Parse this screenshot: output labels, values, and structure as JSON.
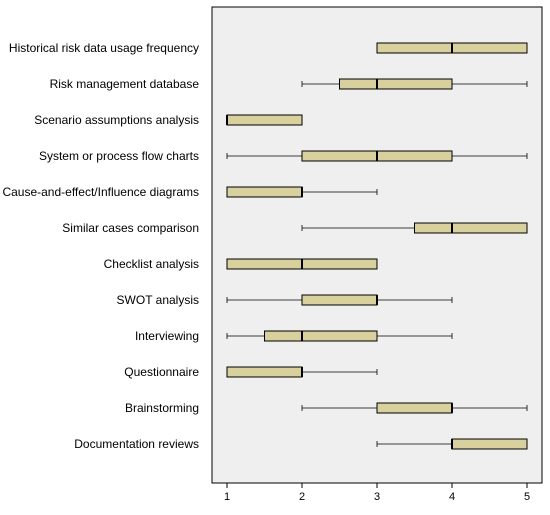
{
  "chart_data": {
    "type": "boxplot",
    "orientation": "horizontal",
    "xlim": [
      0.8,
      5.2
    ],
    "x_ticks": [
      1,
      2,
      3,
      4,
      5
    ],
    "tick_labels": [
      "1",
      "2",
      "3",
      "4",
      "5"
    ],
    "grid": false,
    "colors": {
      "plot_background": "#efefef",
      "box_fill": "#d9d19d",
      "box_stroke": "#000000",
      "median": "#000000",
      "whisker": "#000000",
      "label_text": "#000000"
    },
    "categories": [
      "Historical risk data usage frequency",
      "Risk management database",
      "Scenario assumptions analysis",
      "System or process flow charts",
      "Cause-and-effect/Influence diagrams",
      "Similar cases comparison",
      "Checklist analysis",
      "SWOT analysis",
      "Interviewing",
      "Questionnaire",
      "Brainstorming",
      "Documentation reviews"
    ],
    "boxes": [
      {
        "min": 3,
        "q1": 3,
        "median": 4,
        "q3": 5,
        "max": 5
      },
      {
        "min": 2,
        "q1": 2.5,
        "median": 3,
        "q3": 4,
        "max": 5
      },
      {
        "min": 1,
        "q1": 1,
        "median": 1,
        "q3": 2,
        "max": 2
      },
      {
        "min": 1,
        "q1": 2,
        "median": 3,
        "q3": 4,
        "max": 5
      },
      {
        "min": 1,
        "q1": 1,
        "median": 2,
        "q3": 2,
        "max": 3
      },
      {
        "min": 2,
        "q1": 3.5,
        "median": 4,
        "q3": 5,
        "max": 5
      },
      {
        "min": 1,
        "q1": 1,
        "median": 2,
        "q3": 3,
        "max": 3
      },
      {
        "min": 1,
        "q1": 2,
        "median": 3,
        "q3": 3,
        "max": 4
      },
      {
        "min": 1,
        "q1": 1.5,
        "median": 2,
        "q3": 3,
        "max": 4
      },
      {
        "min": 1,
        "q1": 1,
        "median": 2,
        "q3": 2,
        "max": 3
      },
      {
        "min": 2,
        "q1": 3,
        "median": 4,
        "q3": 4,
        "max": 5
      },
      {
        "min": 3,
        "q1": 4,
        "median": 4,
        "q3": 5,
        "max": 5
      }
    ]
  }
}
